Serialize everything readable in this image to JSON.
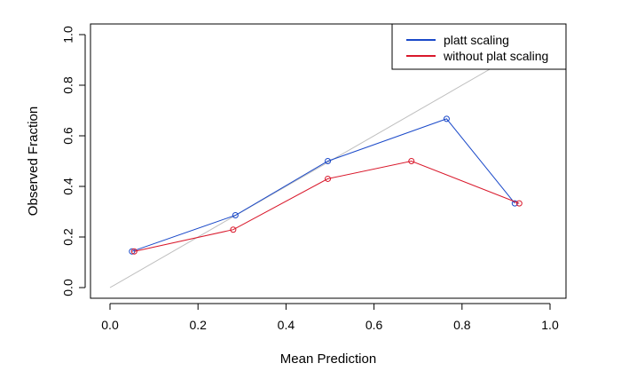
{
  "chart_data": {
    "type": "line",
    "title": "",
    "xlabel": "Mean Prediction",
    "ylabel": "Observed Fraction",
    "xlim": [
      0,
      1
    ],
    "ylim": [
      0,
      1
    ],
    "xticks": [
      0.0,
      0.2,
      0.4,
      0.6,
      0.8,
      1.0
    ],
    "xtick_labels": [
      "0.0",
      "0.2",
      "0.4",
      "0.6",
      "0.8",
      "1.0"
    ],
    "yticks": [
      0.0,
      0.2,
      0.4,
      0.6,
      0.8,
      1.0
    ],
    "ytick_labels": [
      "0.0",
      "0.2",
      "0.4",
      "0.6",
      "0.8",
      "1.0"
    ],
    "grid": false,
    "legend_position": "top-right",
    "reference_line": {
      "x": [
        0,
        1
      ],
      "y": [
        0,
        1
      ],
      "color": "#bebebe"
    },
    "series": [
      {
        "name": "platt scaling",
        "color": "#1a49c9",
        "x": [
          0.05,
          0.285,
          0.495,
          0.765,
          0.92
        ],
        "y": [
          0.143,
          0.286,
          0.5,
          0.667,
          0.333
        ]
      },
      {
        "name": "without plat scaling",
        "color": "#d9182b",
        "x": [
          0.055,
          0.28,
          0.495,
          0.685,
          0.93
        ],
        "y": [
          0.143,
          0.229,
          0.43,
          0.5,
          0.333
        ]
      }
    ]
  }
}
